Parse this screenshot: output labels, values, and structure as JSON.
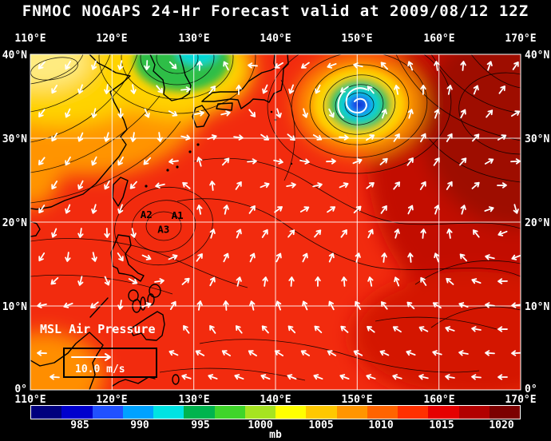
{
  "title": "FNMOC NOGAPS 24-Hr Forecast valid at 2009/08/12 12Z",
  "map": {
    "lon_labels": [
      "110°E",
      "120°E",
      "130°E",
      "140°E",
      "150°E",
      "160°E",
      "170°E"
    ],
    "lat_labels": [
      "40°N",
      "30°N",
      "20°N",
      "10°N",
      "0°"
    ],
    "field_label": "MSL Air Pressure",
    "wind_scale_label": "10.0 m/s",
    "storm_markers": [
      {
        "id": "A1",
        "lon": 128.0,
        "lat": 20.4
      },
      {
        "id": "A2",
        "lon": 124.2,
        "lat": 20.5
      },
      {
        "id": "A3",
        "lon": 126.3,
        "lat": 18.7
      }
    ],
    "features": [
      {
        "type": "tropical-cyclone",
        "lon": 150.3,
        "lat": 34.0
      },
      {
        "type": "low",
        "lon": 127.5,
        "lat": 40.0
      }
    ]
  },
  "colorbar": {
    "unit": "mb",
    "tick_labels": [
      "985",
      "990",
      "995",
      "1000",
      "1005",
      "1010",
      "1015",
      "1020"
    ],
    "colors": [
      "#00007e",
      "#0000cd",
      "#2151ff",
      "#00a2ff",
      "#00e3e3",
      "#00b44e",
      "#3fd52a",
      "#a6e421",
      "#ffff00",
      "#ffc800",
      "#ff9500",
      "#ff6400",
      "#ff3000",
      "#e60000",
      "#b20000",
      "#7c0000"
    ]
  }
}
